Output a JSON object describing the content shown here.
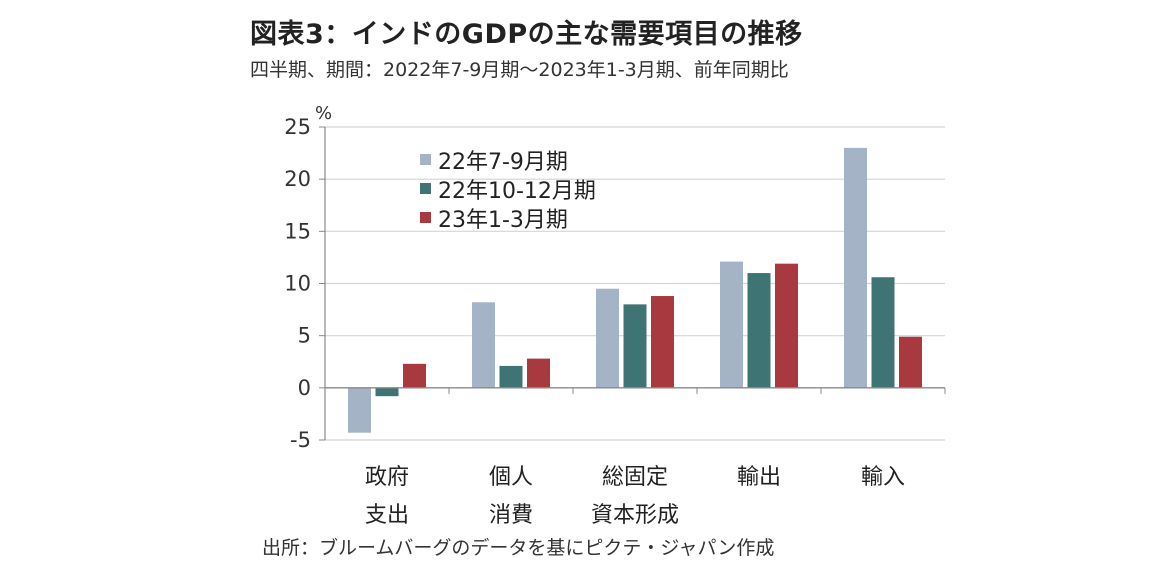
{
  "title": "図表3：インドのGDPの主な需要項目の推移",
  "subtitle": "四半期、期間：2022年7-9月期～2023年1-3月期、前年同期比",
  "source": "出所：ブルームバーグのデータを基にピクテ・ジャパン作成",
  "chart_data": {
    "type": "bar",
    "ylabel": "%",
    "ylim": [
      -5,
      25
    ],
    "yticks": [
      25,
      20,
      15,
      10,
      5,
      0,
      -5
    ],
    "ytick_labels": [
      "25",
      "20",
      "15",
      "10",
      "5",
      "0",
      "-5"
    ],
    "grid": true,
    "legend_position": "top-left",
    "categories": [
      [
        "政府",
        "支出"
      ],
      [
        "個人",
        "消費"
      ],
      [
        "総固定",
        "資本形成"
      ],
      [
        "輸出"
      ],
      [
        "輸入"
      ]
    ],
    "series": [
      {
        "name": "22年7-9月期",
        "color": "#a5b3c6",
        "values": [
          -4.3,
          8.2,
          9.5,
          12.1,
          23.0
        ]
      },
      {
        "name": "22年10-12月期",
        "color": "#3f7475",
        "values": [
          -0.8,
          2.1,
          8.0,
          11.0,
          10.6
        ]
      },
      {
        "name": "23年1-3月期",
        "color": "#a8393f",
        "values": [
          2.3,
          2.8,
          8.8,
          11.9,
          4.9
        ]
      }
    ]
  }
}
